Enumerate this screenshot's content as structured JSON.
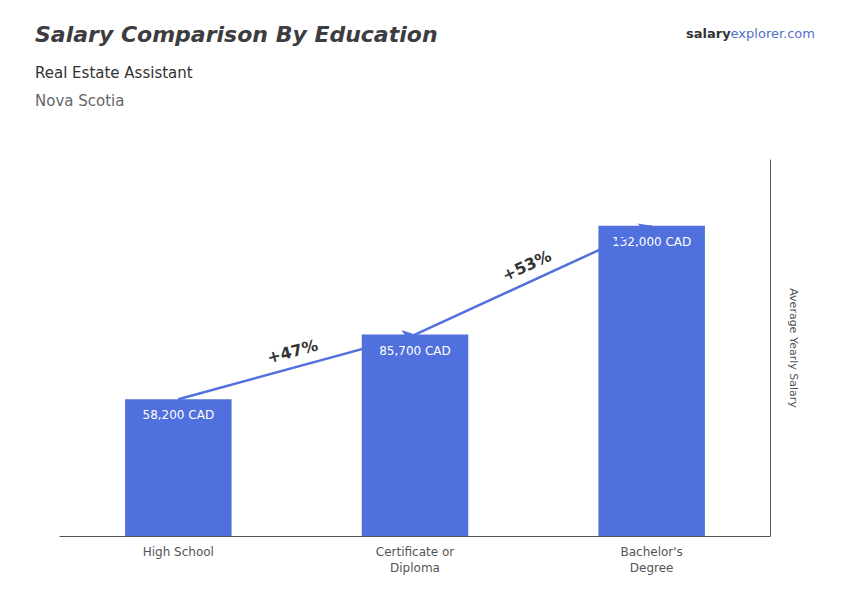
{
  "chart_data": {
    "type": "bar",
    "title": "Salary Comparison By Education",
    "subtitle": [
      "Real Estate Assistant",
      "Nova Scotia"
    ],
    "ylabel": "Average Yearly Salary",
    "categories": [
      "High School",
      "Certificate or\nDiploma",
      "Bachelor's\nDegree"
    ],
    "values": [
      58200,
      85700,
      132000
    ],
    "value_labels": [
      "58,200 CAD",
      "85,700 CAD",
      "132,000 CAD"
    ],
    "data_labels": true,
    "ylim": [
      0,
      160000
    ],
    "grid": false,
    "tick_labels": "x",
    "annotations": [
      {
        "text": "salary"
      },
      {
        "text": "explorer.com"
      },
      {
        "text": "+47%",
        "from": "High School",
        "to": "Certificate or\nDiploma"
      },
      {
        "text": "+53%",
        "from": "Certificate or\nDiploma",
        "to": "Bachelor's\nDegree"
      }
    ]
  }
}
